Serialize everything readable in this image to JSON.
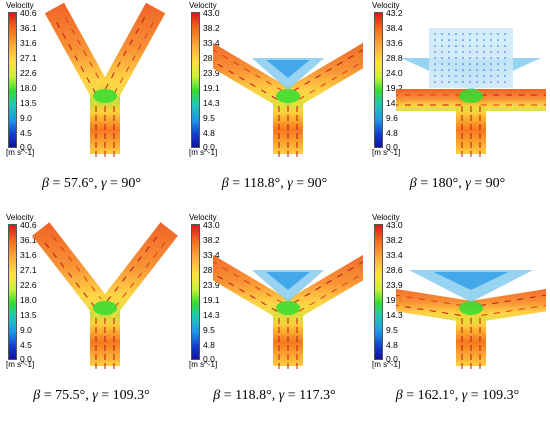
{
  "colorbar_title": "Velocity",
  "unit_label": "[m s^-1]",
  "colors": {
    "low": "#1010a0",
    "mid": "#33dd33",
    "high": "#d7191c"
  },
  "panels": [
    {
      "ticks": [
        "40.6",
        "36.1",
        "31.6",
        "27.1",
        "22.6",
        "18.0",
        "13.5",
        "9.0",
        "4.5",
        "0.0"
      ],
      "beta_label": "β",
      "beta": "57.6°",
      "gamma_label": "γ",
      "gamma": "90°",
      "opening_deg": 57.6,
      "top_fill": false
    },
    {
      "ticks": [
        "43.0",
        "38.2",
        "33.4",
        "28.6",
        "23.9",
        "19.1",
        "14.3",
        "9.5",
        "4.8",
        "0.0"
      ],
      "beta_label": "β",
      "beta": "118.8°",
      "gamma_label": "γ",
      "gamma": "90°",
      "opening_deg": 118.8,
      "top_fill": false
    },
    {
      "ticks": [
        "43.2",
        "38.4",
        "33.6",
        "28.8",
        "24.0",
        "19.2",
        "14.4",
        "9.6",
        "4.8",
        "0.0"
      ],
      "beta_label": "β",
      "beta": "180°",
      "gamma_label": "γ",
      "gamma": "90°",
      "opening_deg": 180,
      "top_fill": true
    },
    {
      "ticks": [
        "40.6",
        "36.1",
        "31.6",
        "27.1",
        "22.6",
        "18.0",
        "13.5",
        "9.0",
        "4.5",
        "0.0"
      ],
      "beta_label": "β",
      "beta": "75.5°",
      "gamma_label": "γ",
      "gamma": "109.3°",
      "opening_deg": 75.5,
      "top_fill": false
    },
    {
      "ticks": [
        "43.0",
        "38.2",
        "33.4",
        "28.6",
        "23.9",
        "19.1",
        "14.3",
        "9.5",
        "4.8",
        "0.0"
      ],
      "beta_label": "β",
      "beta": "118.8°",
      "gamma_label": "γ",
      "gamma": "117.3°",
      "opening_deg": 118.8,
      "top_fill": false
    },
    {
      "ticks": [
        "43.0",
        "38.2",
        "33.4",
        "28.6",
        "23.9",
        "19.1",
        "14.3",
        "9.5",
        "4.8",
        "0.0"
      ],
      "beta_label": "β",
      "beta": "162.1°",
      "gamma_label": "γ",
      "gamma": "109.3°",
      "opening_deg": 162.1,
      "top_fill": false
    }
  ]
}
